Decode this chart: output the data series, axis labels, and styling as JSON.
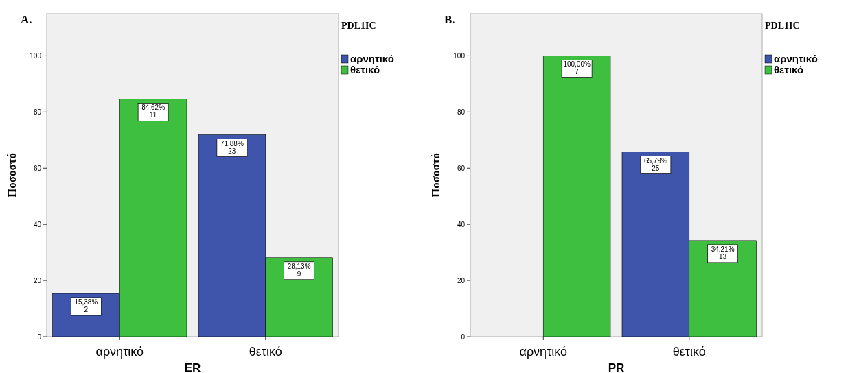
{
  "chart_data": [
    {
      "type": "bar",
      "title": "A.",
      "xlabel": "ER",
      "ylabel": "Ποσοστό",
      "legend_title": "PDL1IC",
      "legend": "right",
      "categories": [
        "αρνητικό",
        "θετικό"
      ],
      "ylim": [
        0,
        115
      ],
      "yticks": [
        0,
        20,
        40,
        60,
        80,
        100
      ],
      "series": [
        {
          "name": "αρνητικό",
          "color": "#3e55ab",
          "values": [
            15.38,
            71.88
          ],
          "value_labels": [
            "15,38%\n2",
            "71,88%\n23"
          ]
        },
        {
          "name": "θετικό",
          "color": "#3fbf3f",
          "values": [
            84.62,
            28.13
          ],
          "value_labels": [
            "84,62%\n11",
            "28,13%\n9"
          ]
        }
      ]
    },
    {
      "type": "bar",
      "title": "B.",
      "xlabel": "PR",
      "ylabel": "Ποσοστό",
      "legend_title": "PDL1IC",
      "legend": "right",
      "categories": [
        "αρνητικό",
        "θετικό"
      ],
      "ylim": [
        0,
        115
      ],
      "yticks": [
        0,
        20,
        40,
        60,
        80,
        100
      ],
      "series": [
        {
          "name": "αρνητικό",
          "color": "#3e55ab",
          "values": [
            null,
            65.79
          ],
          "value_labels": [
            null,
            "65,79%\n25"
          ]
        },
        {
          "name": "θετικό",
          "color": "#3fbf3f",
          "values": [
            100,
            34.21
          ],
          "value_labels": [
            "100,00%\n7",
            "34,21%\n13"
          ]
        }
      ]
    }
  ]
}
